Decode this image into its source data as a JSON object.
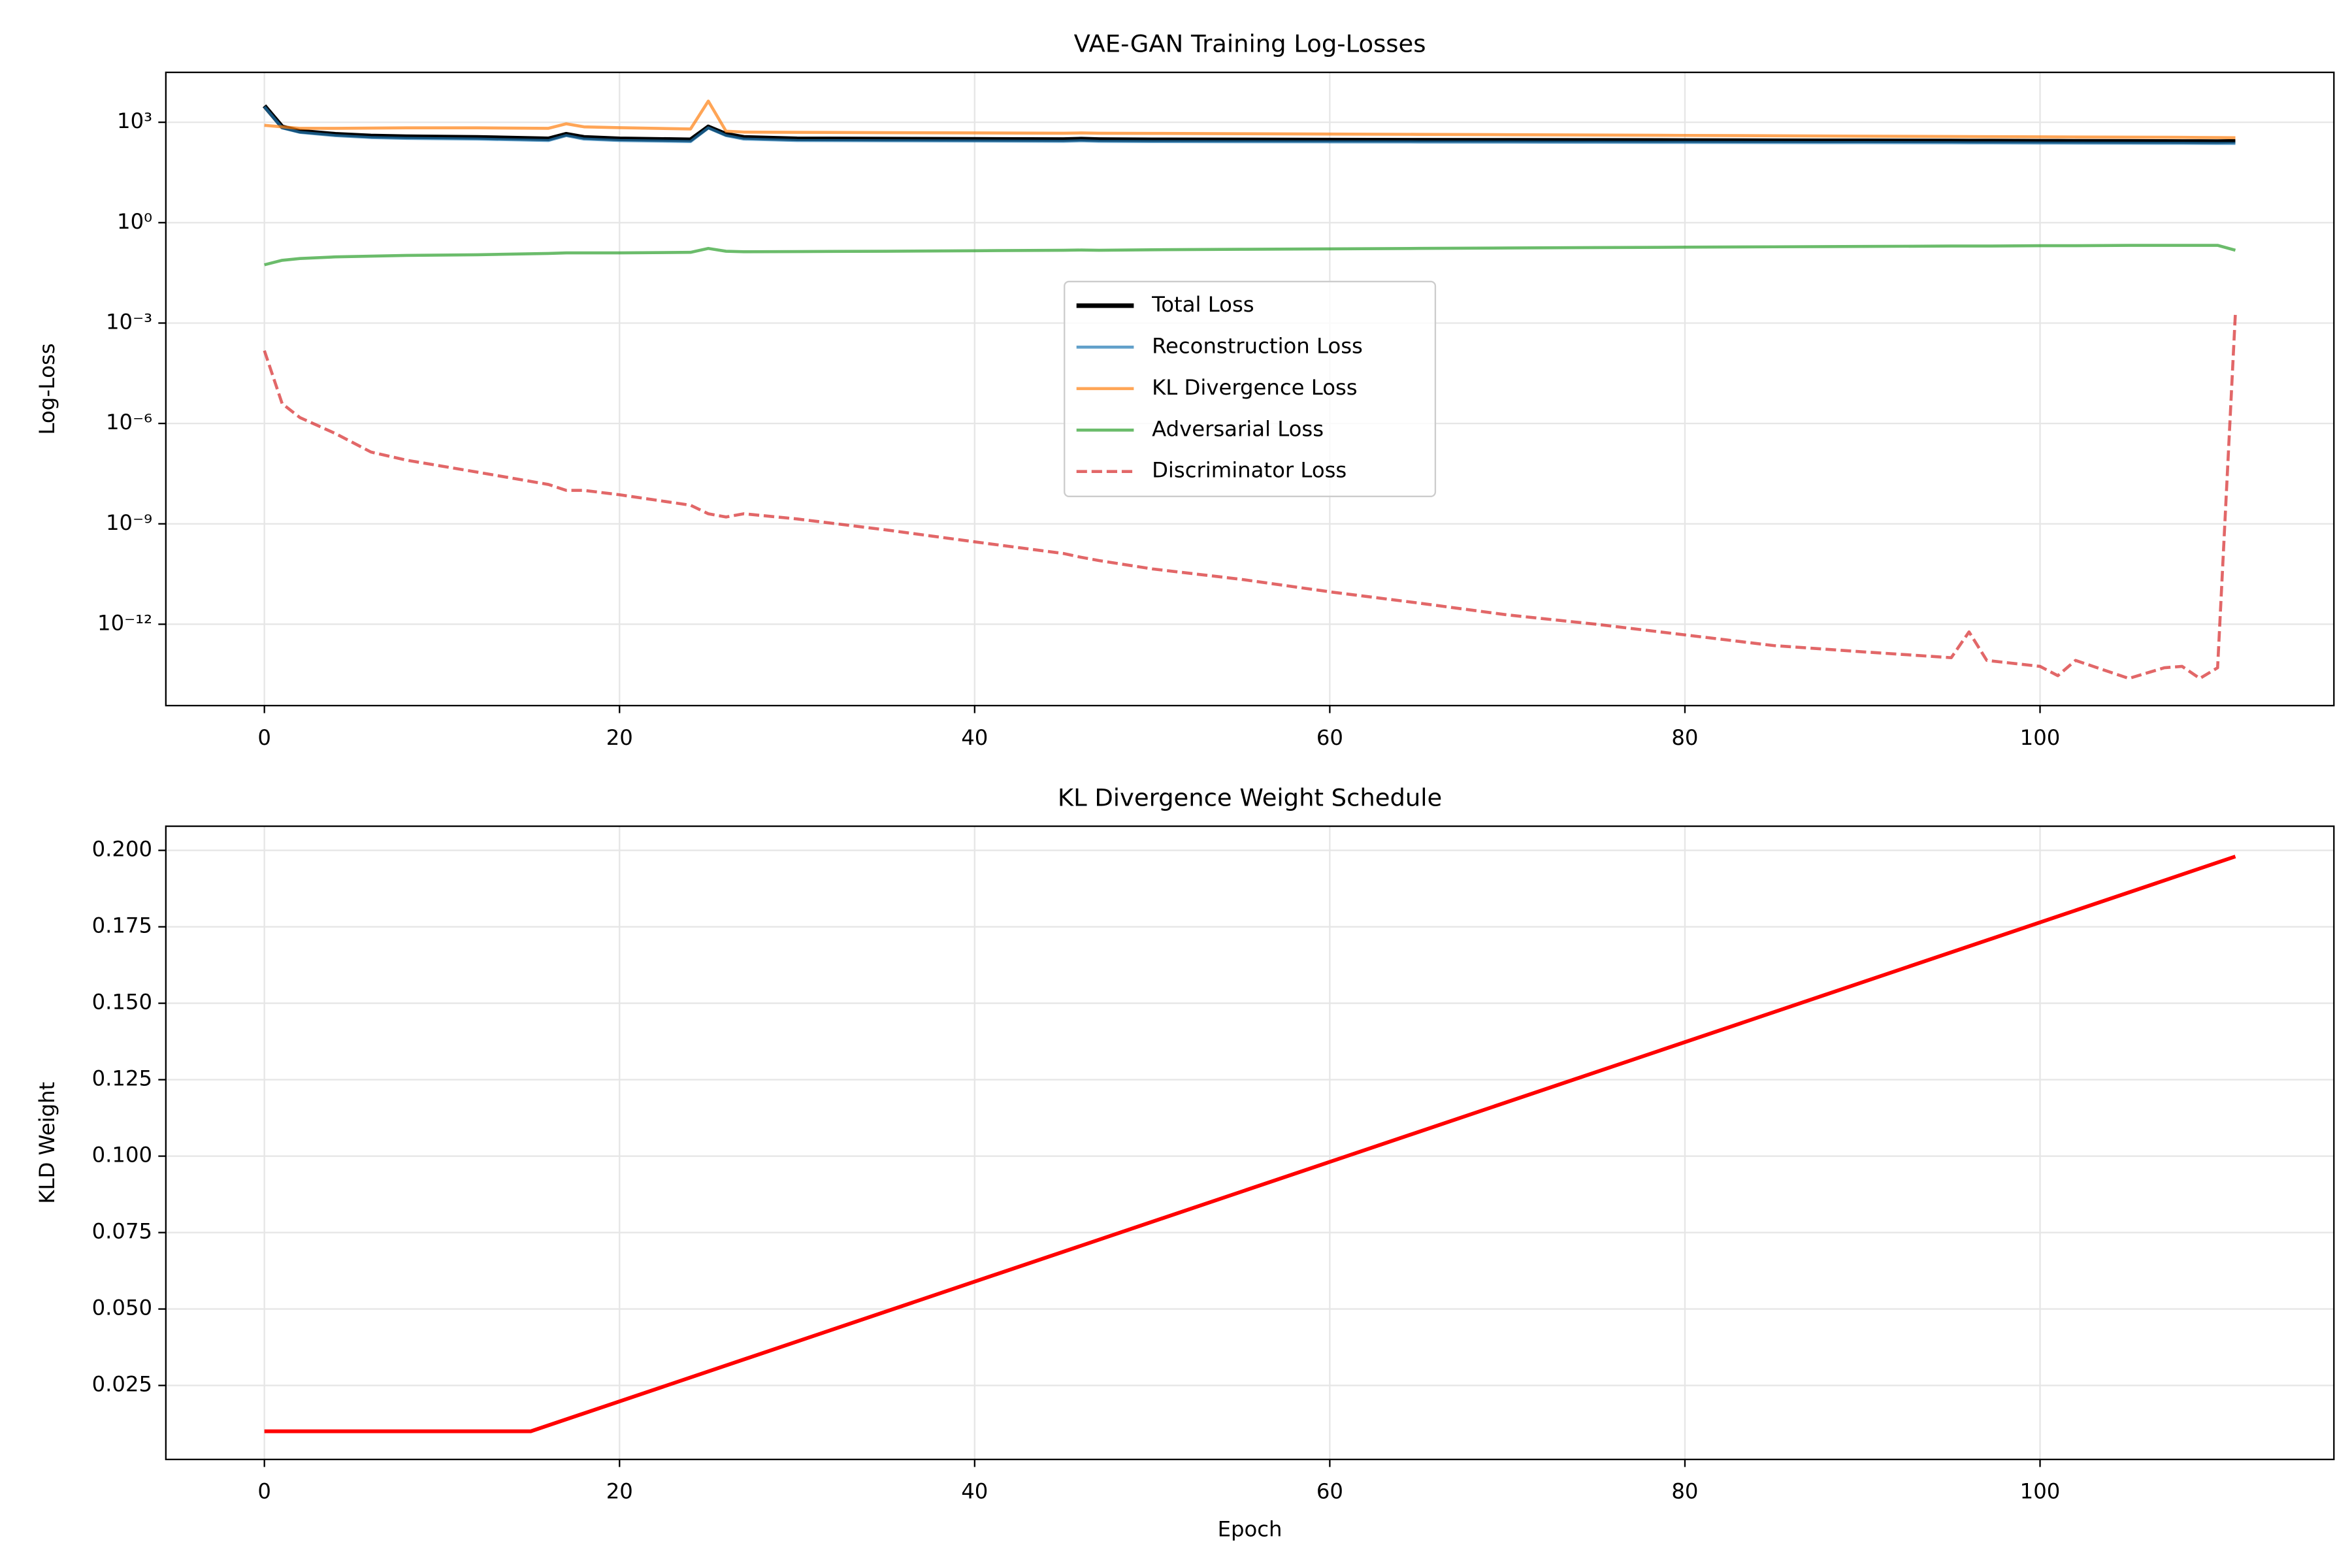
{
  "chart_data": [
    {
      "type": "line",
      "title": "VAE-GAN Training Log-Losses",
      "ylabel": "Log-Loss",
      "yscale": "log",
      "grid": true,
      "legend": "center",
      "x": [
        0,
        1,
        2,
        4,
        6,
        8,
        12,
        16,
        17,
        18,
        20,
        24,
        25,
        26,
        27,
        30,
        35,
        40,
        45,
        46,
        47,
        50,
        55,
        60,
        65,
        70,
        75,
        80,
        85,
        90,
        95,
        96,
        97,
        100,
        101,
        102,
        105,
        107,
        108,
        109,
        110,
        111
      ],
      "series": [
        {
          "name": "Total Loss",
          "color": "#000000",
          "linewidth": 3,
          "alpha": 1,
          "values": [
            3100,
            730,
            540,
            440,
            390,
            370,
            355,
            320,
            440,
            355,
            320,
            300,
            730,
            440,
            355,
            320,
            315,
            310,
            305,
            315,
            305,
            300,
            298,
            295,
            292,
            290,
            288,
            285,
            282,
            280,
            277,
            276,
            275,
            273,
            272,
            271,
            269,
            268,
            267,
            266,
            265,
            270
          ]
        },
        {
          "name": "Reconstruction Loss",
          "color": "#1f77b4",
          "linewidth": 2,
          "alpha": 0.7,
          "values": [
            2900,
            680,
            500,
            400,
            350,
            330,
            315,
            285,
            400,
            315,
            285,
            265,
            680,
            400,
            315,
            285,
            280,
            275,
            270,
            280,
            270,
            265,
            262,
            260,
            257,
            255,
            252,
            250,
            248,
            246,
            244,
            243,
            242,
            240,
            239,
            238,
            237,
            236,
            235,
            234,
            233,
            233
          ]
        },
        {
          "name": "KL Divergence Loss",
          "color": "#ff7f0e",
          "linewidth": 2,
          "alpha": 0.7,
          "values": [
            810,
            730,
            660,
            660,
            670,
            680,
            680,
            660,
            900,
            730,
            690,
            630,
            4300,
            540,
            510,
            500,
            490,
            480,
            470,
            480,
            470,
            465,
            455,
            445,
            435,
            425,
            415,
            405,
            395,
            385,
            375,
            374,
            372,
            368,
            366,
            364,
            360,
            357,
            355,
            352,
            350,
            345
          ]
        },
        {
          "name": "Adversarial Loss",
          "color": "#2ca02c",
          "linewidth": 2,
          "alpha": 0.7,
          "values": [
            0.055,
            0.075,
            0.085,
            0.095,
            0.1,
            0.105,
            0.11,
            0.12,
            0.125,
            0.125,
            0.125,
            0.13,
            0.17,
            0.14,
            0.135,
            0.137,
            0.14,
            0.145,
            0.15,
            0.152,
            0.15,
            0.155,
            0.16,
            0.165,
            0.17,
            0.175,
            0.18,
            0.185,
            0.19,
            0.195,
            0.2,
            0.2,
            0.2,
            0.205,
            0.205,
            0.205,
            0.21,
            0.21,
            0.21,
            0.21,
            0.21,
            0.15
          ]
        },
        {
          "name": "Discriminator Loss",
          "color": "#d62728",
          "linewidth": 2,
          "alpha": 0.7,
          "linestyle": "dashed",
          "values": [
            0.00015,
            3.9e-06,
            1.5e-06,
            5e-07,
            1.4e-07,
            8e-08,
            3.5e-08,
            1.5e-08,
            1e-08,
            1e-08,
            7.4e-09,
            3.6e-09,
            2e-09,
            1.6e-09,
            2e-09,
            1.4e-09,
            6.6e-10,
            2.9e-10,
            1.3e-10,
            1e-10,
            8e-11,
            4.5e-11,
            2.2e-11,
            9.3e-12,
            4.3e-12,
            1.9e-12,
            1e-12,
            4.8e-13,
            2.3e-13,
            1.5e-13,
            1e-13,
            5.9e-13,
            8.3e-14,
            5.5e-14,
            2.9e-14,
            8.3e-14,
            2.4e-14,
            5e-14,
            5.5e-14,
            2.4e-14,
            5e-14,
            0.0019
          ]
        }
      ],
      "xlim": [
        -5.55,
        116.55
      ],
      "ylim": [
        3.7e-15,
        31000
      ],
      "xticks": [
        0,
        20,
        40,
        60,
        80,
        100
      ],
      "yticks": [
        {
          "value": 1e-12,
          "label": "10⁻¹²"
        },
        {
          "value": 1e-09,
          "label": "10⁻⁹"
        },
        {
          "value": 1e-06,
          "label": "10⁻⁶"
        },
        {
          "value": 0.001,
          "label": "10⁻³"
        },
        {
          "value": 1,
          "label": "10⁰"
        },
        {
          "value": 1000,
          "label": "10³"
        }
      ]
    },
    {
      "type": "line",
      "title": "KL Divergence Weight Schedule",
      "xlabel": "Epoch",
      "ylabel": "KLD Weight",
      "grid": true,
      "color": "#ff0000",
      "linewidth": 2.5,
      "x": [
        0,
        15,
        111
      ],
      "values": [
        0.01,
        0.01,
        0.198
      ],
      "xlim": [
        -5.55,
        116.55
      ],
      "ylim": [
        0.0008,
        0.2079
      ],
      "xticks": [
        0,
        20,
        40,
        60,
        80,
        100
      ],
      "yticks": [
        0.025,
        {
          "value": 0.05,
          "label": "0.050"
        },
        0.075,
        {
          "value": 0.1,
          "label": "0.100"
        },
        0.125,
        {
          "value": 0.15,
          "label": "0.150"
        },
        0.175,
        {
          "value": 0.2,
          "label": "0.200"
        }
      ]
    }
  ]
}
